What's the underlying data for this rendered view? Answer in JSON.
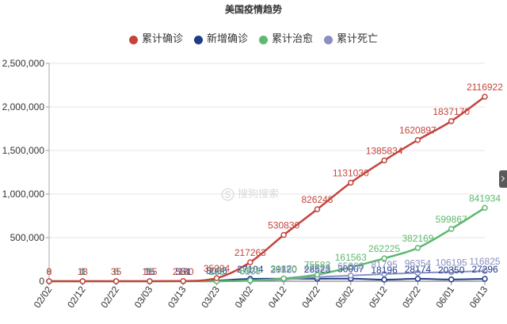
{
  "watermark": "搜狗搜索",
  "side_tab": {
    "icon": "chevron-right-icon"
  },
  "chart_data": {
    "type": "line",
    "title": "美国疫情趋势",
    "legend": "top-center",
    "grid": true,
    "categories": [
      "02/02",
      "02/12",
      "02/22",
      "03/03",
      "03/13",
      "03/23",
      "04/02",
      "04/12",
      "04/22",
      "05/02",
      "05/12",
      "05/22",
      "06/01",
      "06/13"
    ],
    "ylim": [
      0,
      2500000
    ],
    "yticks": [
      "0",
      "500,000",
      "1,000,000",
      "1,500,000",
      "2,000,000",
      "2,500,000"
    ],
    "series": [
      {
        "name": "累计确诊",
        "color": "#c4443c",
        "values": [
          8,
          13,
          35,
          115,
          2180,
          35224,
          217263,
          530830,
          826248,
          1131030,
          1385834,
          1620897,
          1837170,
          2116922
        ]
      },
      {
        "name": "新增确诊",
        "color": "#1f3b8a",
        "values": [
          0,
          1,
          0,
          15,
          551,
          8066,
          27104,
          29120,
          28523,
          30007,
          18196,
          28174,
          20350,
          27296
        ]
      },
      {
        "name": "累计治愈",
        "color": "#5db96d",
        "values": [
          0,
          3,
          5,
          7,
          12,
          178,
          8878,
          31270,
          75582,
          161563,
          262225,
          382169,
          599867,
          841934
        ]
      },
      {
        "name": "累计死亡",
        "color": "#8b8ec2",
        "values": [
          0,
          0,
          0,
          9,
          51,
          486,
          5137,
          20580,
          47328,
          65068,
          81795,
          96354,
          106195,
          116825
        ]
      }
    ]
  }
}
